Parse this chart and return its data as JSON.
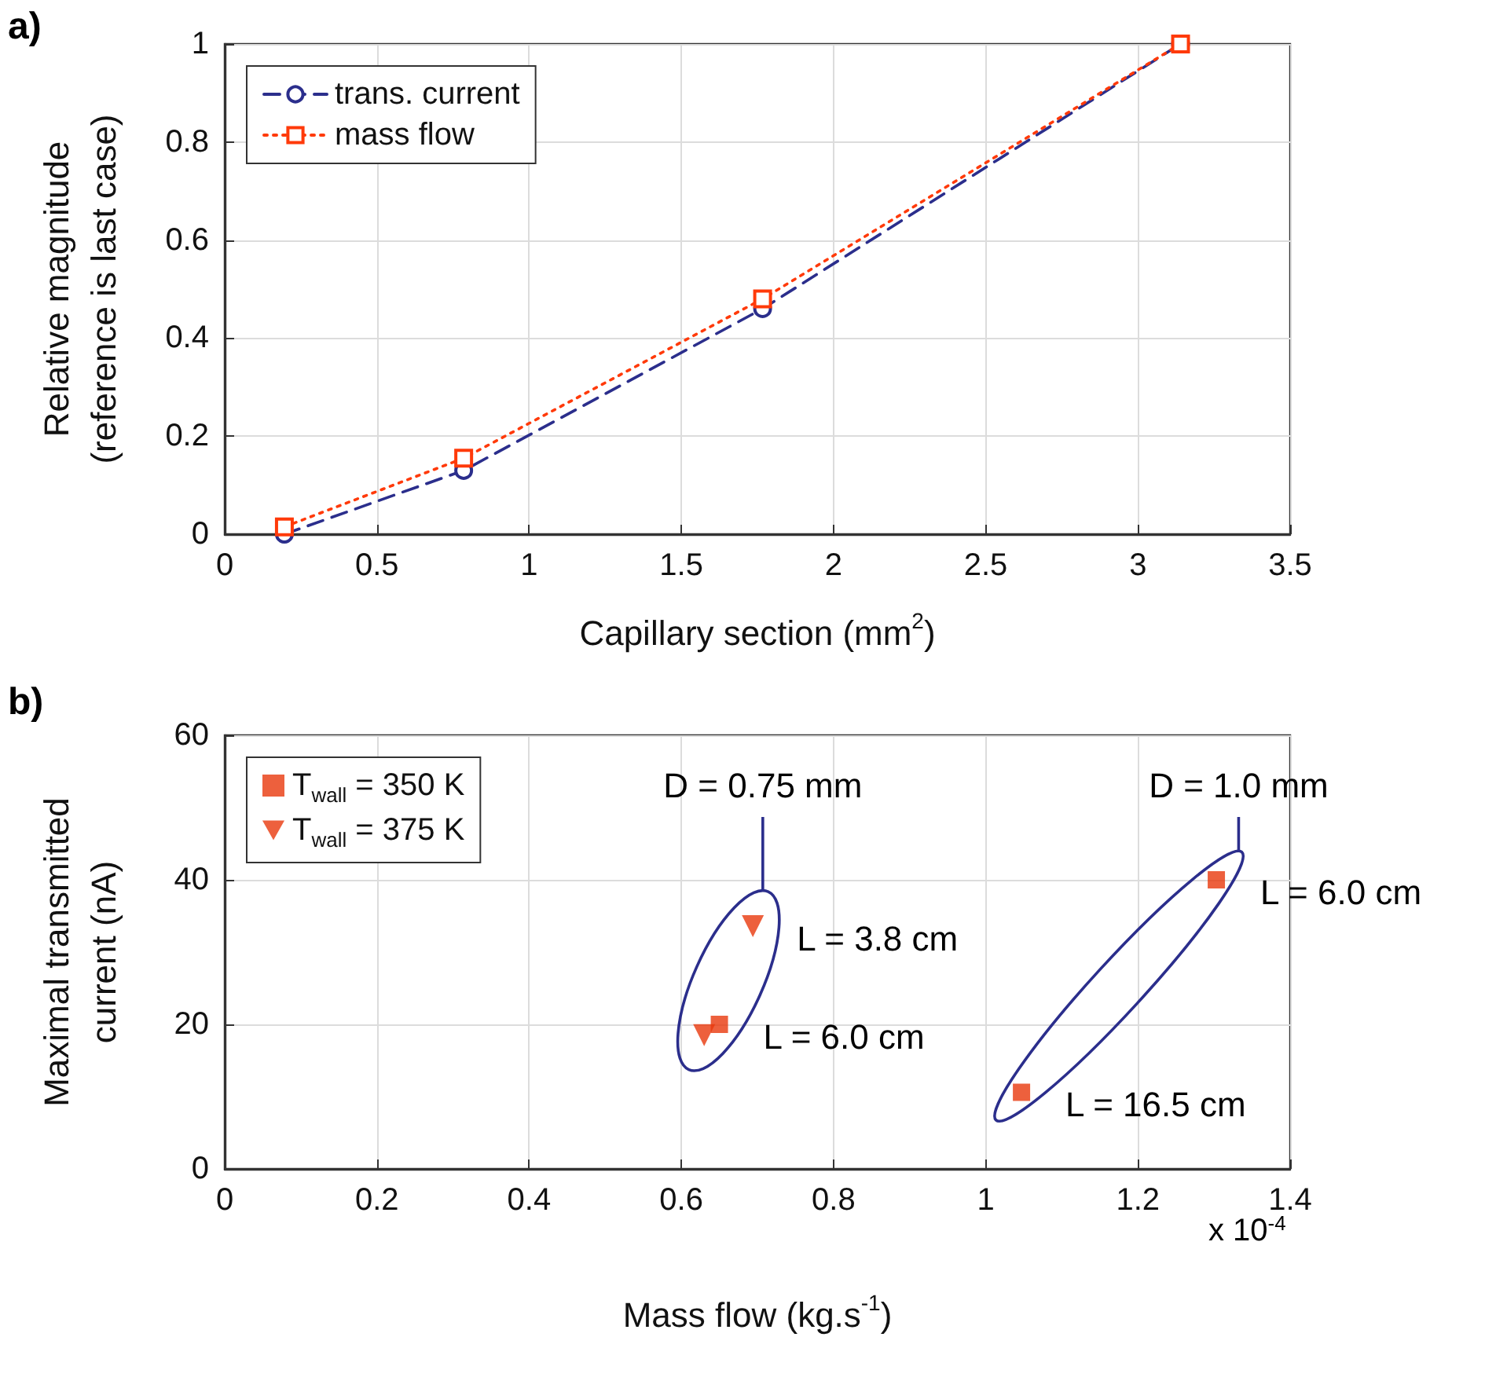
{
  "chart_data": [
    {
      "type": "line",
      "title": "a)",
      "xlabel": "Capillary section (mm$^{2}$)",
      "ylabel": "Relative magnitude\n(reference is last case)",
      "x": [
        0.196,
        0.785,
        1.767,
        3.14
      ],
      "series": [
        {
          "name": "trans. current",
          "color": "#2b2e8c",
          "values": [
            0.0,
            0.13,
            0.46,
            1.0
          ],
          "marker": "circle",
          "line_style": "dashed"
        },
        {
          "name": "mass flow",
          "color": "#ff3a0a",
          "values": [
            0.015,
            0.155,
            0.48,
            1.0
          ],
          "marker": "square",
          "line_style": "dotted"
        }
      ],
      "xlim": [
        0,
        3.5
      ],
      "xticks": [
        0,
        0.5,
        1,
        1.5,
        2,
        2.5,
        3,
        3.5
      ],
      "ylim": [
        0,
        1
      ],
      "yticks": [
        0,
        0.2,
        0.4,
        0.6,
        0.8,
        1
      ],
      "grid": true,
      "legend": "top left"
    },
    {
      "type": "scatter",
      "title": "b)",
      "xlabel": "Mass flow (kg.s$^{-1}$)",
      "ylabel": "Maximal transmitted\ncurrent (nA)",
      "series": [
        {
          "name": "T$_{wall}$ = 350 K",
          "color": "#e8380d",
          "marker": "square",
          "x": [
            0.65,
            1.047,
            1.303
          ],
          "values": [
            20,
            10.6,
            40
          ]
        },
        {
          "name": "T$_{wall}$ = 375 K",
          "color": "#e8380d",
          "marker": "triangle",
          "x": [
            0.63,
            0.694
          ],
          "values": [
            18.5,
            33.6
          ]
        }
      ],
      "xlim": [
        0,
        1.4
      ],
      "xticks": [
        0,
        0.2,
        0.4,
        0.6,
        0.8,
        1,
        1.2,
        1.4
      ],
      "ylim": [
        0,
        60
      ],
      "yticks": [
        0,
        20,
        40,
        60
      ],
      "grid": true,
      "legend": "top left",
      "annotations": [
        "D = 0.75 mm",
        "D = 1.0 mm",
        {
          "text": "L = 3.8 cm",
          "x": 0.694,
          "y": 33.6
        },
        {
          "text": "L = 6.0 cm",
          "x": 0.65,
          "y": 20
        },
        {
          "text": "L = 6.0 cm",
          "x": 1.303,
          "y": 40
        },
        {
          "text": "L = 16.5 cm",
          "x": 1.047,
          "y": 10.6
        },
        "x 10$^{-4}$"
      ]
    }
  ]
}
